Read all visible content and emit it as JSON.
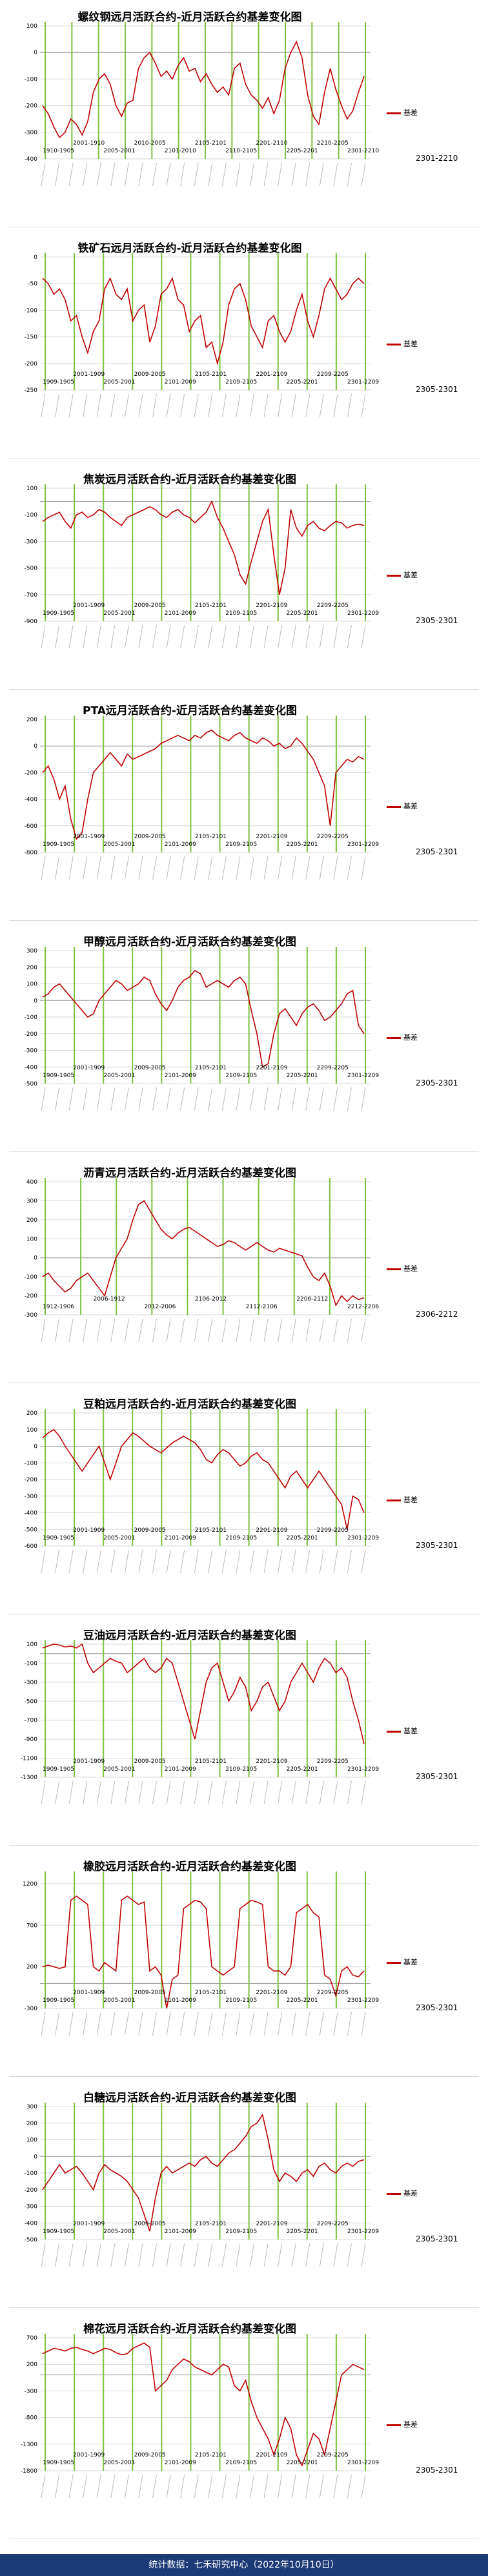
{
  "footer": "统计数据：七禾研究中心（2022年10月10日）",
  "legend_label": "基差",
  "chart_data": [
    {
      "type": "line",
      "title": "螺纹钢远月活跃合约-近月活跃合约基差变化图",
      "ytick_labels": [
        "100",
        "0",
        "-100",
        "-200",
        "-300",
        "-400"
      ],
      "ylim": [
        -400,
        100
      ],
      "vlines": 13,
      "period_labels": [
        "1910-1905",
        "2001-1910",
        "2005-2001",
        "2010-2005",
        "2101-2010",
        "2105-2101",
        "2110-2105",
        "2201-2110",
        "2205-2201",
        "2210-2205",
        "2301-2210"
      ],
      "series": [
        {
          "name": "基差",
          "values": [
            -200,
            -230,
            -280,
            -320,
            -300,
            -250,
            -270,
            -310,
            -260,
            -150,
            -100,
            -80,
            -120,
            -200,
            -240,
            -190,
            -180,
            -60,
            -20,
            0,
            -40,
            -90,
            -70,
            -100,
            -50,
            -20,
            -70,
            -60,
            -110,
            -80,
            -120,
            -150,
            -130,
            -160,
            -60,
            -40,
            -120,
            -160,
            -180,
            -210,
            -170,
            -230,
            -180,
            -60,
            0,
            40,
            -20,
            -160,
            -240,
            -270,
            -150,
            -60,
            -140,
            -200,
            -250,
            -220,
            -150,
            -90
          ]
        }
      ],
      "extra_label": "2301-2210"
    },
    {
      "type": "line",
      "title": "铁矿石远月活跃合约-近月活跃合约基差变化图",
      "ytick_labels": [
        "0",
        "-50",
        "-100",
        "-150",
        "-200",
        "-250"
      ],
      "ylim": [
        -250,
        0
      ],
      "vlines": 12,
      "period_labels": [
        "1909-1905",
        "2001-1909",
        "2005-2001",
        "2009-2005",
        "2101-2009",
        "2105-2101",
        "2109-2105",
        "2201-2109",
        "2205-2201",
        "2209-2205",
        "2301-2209"
      ],
      "series": [
        {
          "name": "基差",
          "values": [
            -40,
            -50,
            -70,
            -60,
            -80,
            -120,
            -110,
            -150,
            -180,
            -140,
            -120,
            -60,
            -40,
            -70,
            -80,
            -60,
            -120,
            -100,
            -90,
            -160,
            -130,
            -70,
            -60,
            -40,
            -80,
            -90,
            -140,
            -120,
            -110,
            -170,
            -160,
            -200,
            -160,
            -90,
            -60,
            -50,
            -80,
            -130,
            -150,
            -170,
            -120,
            -110,
            -140,
            -160,
            -140,
            -100,
            -70,
            -120,
            -150,
            -110,
            -60,
            -40,
            -60,
            -80,
            -70,
            -50,
            -40,
            -50
          ]
        }
      ],
      "extra_label": "2305-2301"
    },
    {
      "type": "line",
      "title": "焦炭远月活跃合约-近月活跃合约基差变化图",
      "ytick_labels": [
        "100",
        "-100",
        "-300",
        "-500",
        "-700",
        "-900"
      ],
      "ylim": [
        -900,
        100
      ],
      "vlines": 12,
      "period_labels": [
        "1909-1905",
        "2001-1909",
        "2005-2001",
        "2009-2005",
        "2101-2009",
        "2105-2101",
        "2109-2105",
        "2201-2109",
        "2205-2201",
        "2209-2205",
        "2301-2209"
      ],
      "series": [
        {
          "name": "基差",
          "values": [
            -150,
            -120,
            -100,
            -80,
            -150,
            -200,
            -100,
            -80,
            -120,
            -100,
            -60,
            -80,
            -120,
            -150,
            -180,
            -120,
            -100,
            -80,
            -60,
            -40,
            -60,
            -100,
            -120,
            -80,
            -60,
            -100,
            -120,
            -160,
            -120,
            -80,
            0,
            -120,
            -200,
            -300,
            -400,
            -550,
            -620,
            -450,
            -300,
            -150,
            -60,
            -400,
            -700,
            -500,
            -60,
            -200,
            -260,
            -180,
            -150,
            -200,
            -220,
            -180,
            -150,
            -160,
            -200,
            -180,
            -170,
            -180
          ]
        }
      ],
      "extra_label": "2305-2301"
    },
    {
      "type": "line",
      "title": "PTA远月活跃合约-近月活跃合约基差变化图",
      "ytick_labels": [
        "200",
        "0",
        "-200",
        "-400",
        "-600",
        "-800"
      ],
      "ylim": [
        -800,
        200
      ],
      "vlines": 12,
      "period_labels": [
        "1909-1905",
        "2001-1909",
        "2005-2001",
        "2009-2005",
        "2101-2009",
        "2105-2101",
        "2109-2105",
        "2201-2109",
        "2205-2201",
        "2209-2205",
        "2301-2209"
      ],
      "series": [
        {
          "name": "基差",
          "values": [
            -200,
            -150,
            -250,
            -400,
            -300,
            -550,
            -700,
            -650,
            -400,
            -200,
            -150,
            -100,
            -50,
            -100,
            -150,
            -60,
            -100,
            -80,
            -60,
            -40,
            -20,
            20,
            40,
            60,
            80,
            60,
            40,
            80,
            60,
            100,
            120,
            80,
            60,
            40,
            80,
            100,
            60,
            40,
            20,
            60,
            40,
            0,
            20,
            -20,
            0,
            60,
            20,
            -40,
            -100,
            -200,
            -300,
            -600,
            -200,
            -150,
            -100,
            -120,
            -80,
            -100
          ]
        }
      ],
      "extra_label": "2305-2301"
    },
    {
      "type": "line",
      "title": "甲醇远月活跃合约-近月活跃合约基差变化图",
      "ytick_labels": [
        "300",
        "200",
        "100",
        "0",
        "-100",
        "-200",
        "-300",
        "-400",
        "-500"
      ],
      "ylim": [
        -500,
        300
      ],
      "vlines": 12,
      "period_labels": [
        "1909-1905",
        "2001-1909",
        "2005-2001",
        "2009-2005",
        "2101-2009",
        "2105-2101",
        "2109-2105",
        "2201-2109",
        "2205-2201",
        "2209-2205",
        "2301-2209"
      ],
      "series": [
        {
          "name": "基差",
          "values": [
            20,
            40,
            80,
            100,
            60,
            20,
            -20,
            -60,
            -100,
            -80,
            0,
            40,
            80,
            120,
            100,
            60,
            80,
            100,
            140,
            120,
            40,
            -20,
            -60,
            0,
            80,
            120,
            140,
            180,
            160,
            80,
            100,
            120,
            100,
            80,
            120,
            140,
            100,
            -60,
            -200,
            -400,
            -380,
            -200,
            -80,
            -50,
            -100,
            -150,
            -80,
            -40,
            -20,
            -60,
            -120,
            -100,
            -60,
            -20,
            40,
            60,
            -150,
            -200
          ]
        }
      ],
      "extra_label": "2305-2301"
    },
    {
      "type": "line",
      "title": "沥青远月活跃合约-近月活跃合约基差变化图",
      "ytick_labels": [
        "400",
        "300",
        "200",
        "100",
        "0",
        "-100",
        "-200",
        "-300"
      ],
      "ylim": [
        -300,
        400
      ],
      "vlines": 10,
      "period_labels": [
        "1912-1906",
        "2006-1912",
        "2012-2006",
        "2106-2012",
        "2112-2106",
        "2206-2112",
        "2212-2206"
      ],
      "series": [
        {
          "name": "基差",
          "values": [
            -100,
            -80,
            -120,
            -150,
            -180,
            -160,
            -120,
            -100,
            -80,
            -120,
            -160,
            -200,
            -100,
            0,
            50,
            100,
            200,
            280,
            300,
            250,
            200,
            150,
            120,
            100,
            130,
            150,
            160,
            140,
            120,
            100,
            80,
            60,
            70,
            90,
            80,
            60,
            40,
            60,
            80,
            60,
            40,
            30,
            50,
            40,
            30,
            20,
            10,
            -50,
            -100,
            -120,
            -80,
            -150,
            -250,
            -200,
            -230,
            -200,
            -220,
            -210
          ]
        }
      ],
      "extra_label": "2306-2212"
    },
    {
      "type": "line",
      "title": "豆粕远月活跃合约-近月活跃合约基差变化图",
      "ytick_labels": [
        "200",
        "100",
        "0",
        "-100",
        "-200",
        "-300",
        "-400",
        "-500",
        "-600"
      ],
      "ylim": [
        -600,
        200
      ],
      "vlines": 12,
      "period_labels": [
        "1909-1905",
        "2001-1909",
        "2005-2001",
        "2009-2005",
        "2101-2009",
        "2105-2101",
        "2109-2105",
        "2201-2109",
        "2205-2201",
        "2209-2205",
        "2301-2209"
      ],
      "series": [
        {
          "name": "基差",
          "values": [
            50,
            80,
            100,
            60,
            0,
            -50,
            -100,
            -150,
            -100,
            -50,
            0,
            -100,
            -200,
            -100,
            0,
            40,
            80,
            60,
            30,
            0,
            -20,
            -40,
            -10,
            20,
            40,
            60,
            40,
            20,
            -20,
            -80,
            -100,
            -50,
            -20,
            -40,
            -80,
            -120,
            -100,
            -60,
            -40,
            -80,
            -100,
            -150,
            -200,
            -250,
            -180,
            -150,
            -200,
            -250,
            -200,
            -150,
            -200,
            -250,
            -300,
            -350,
            -500,
            -300,
            -320,
            -400
          ]
        }
      ],
      "extra_label": "2305-2301"
    },
    {
      "type": "line",
      "title": "豆油远月活跃合约-近月活跃合约基差变化图",
      "ytick_labels": [
        "100",
        "-100",
        "-300",
        "-500",
        "-700",
        "-900",
        "-1100",
        "-1300"
      ],
      "ylim": [
        -1300,
        100
      ],
      "vlines": 12,
      "period_labels": [
        "1909-1905",
        "2001-1909",
        "2005-2001",
        "2009-2005",
        "2101-2009",
        "2105-2101",
        "2109-2105",
        "2201-2109",
        "2205-2201",
        "2209-2205",
        "2301-2209"
      ],
      "series": [
        {
          "name": "基差",
          "values": [
            60,
            80,
            100,
            90,
            70,
            80,
            60,
            100,
            -100,
            -200,
            -150,
            -100,
            -50,
            -80,
            -100,
            -200,
            -150,
            -100,
            -50,
            -150,
            -200,
            -150,
            -50,
            -100,
            -300,
            -500,
            -700,
            -900,
            -600,
            -300,
            -150,
            -100,
            -300,
            -500,
            -400,
            -250,
            -350,
            -600,
            -500,
            -350,
            -300,
            -450,
            -600,
            -500,
            -300,
            -200,
            -100,
            -200,
            -300,
            -150,
            -50,
            -100,
            -200,
            -150,
            -250,
            -500,
            -700,
            -950
          ]
        }
      ],
      "extra_label": "2305-2301"
    },
    {
      "type": "line",
      "title": "橡胶远月活跃合约-近月活跃合约基差变化图",
      "ytick_labels": [
        "1200",
        "700",
        "200",
        "-300"
      ],
      "ylim": [
        -300,
        1300
      ],
      "vlines": 12,
      "period_labels": [
        "1909-1905",
        "2001-1909",
        "2005-2001",
        "2009-2005",
        "2101-2009",
        "2105-2101",
        "2109-2105",
        "2201-2109",
        "2205-2201",
        "2209-2205",
        "2301-2209"
      ],
      "series": [
        {
          "name": "基差",
          "values": [
            200,
            220,
            200,
            180,
            200,
            1000,
            1050,
            1000,
            950,
            200,
            150,
            250,
            200,
            150,
            1000,
            1050,
            1000,
            950,
            980,
            150,
            200,
            100,
            -300,
            50,
            100,
            900,
            950,
            1000,
            980,
            900,
            200,
            150,
            100,
            150,
            200,
            900,
            950,
            1000,
            980,
            950,
            200,
            150,
            150,
            100,
            200,
            850,
            900,
            950,
            850,
            800,
            100,
            50,
            -150,
            150,
            200,
            100,
            80,
            150
          ]
        }
      ],
      "extra_label": "2305-2301"
    },
    {
      "type": "line",
      "title": "白糖远月活跃合约-近月活跃合约基差变化图",
      "ytick_labels": [
        "300",
        "200",
        "100",
        "0",
        "-100",
        "-200",
        "-300",
        "-400",
        "-500"
      ],
      "ylim": [
        -500,
        300
      ],
      "vlines": 12,
      "period_labels": [
        "1909-1905",
        "2001-1909",
        "2005-2001",
        "2009-2005",
        "2101-2009",
        "2105-2101",
        "2109-2105",
        "2201-2109",
        "2205-2201",
        "2209-2205",
        "2301-2209"
      ],
      "series": [
        {
          "name": "基差",
          "values": [
            -200,
            -150,
            -100,
            -50,
            -100,
            -80,
            -60,
            -100,
            -150,
            -200,
            -100,
            -50,
            -80,
            -100,
            -120,
            -150,
            -200,
            -250,
            -350,
            -450,
            -250,
            -100,
            -60,
            -100,
            -80,
            -60,
            -40,
            -60,
            -20,
            0,
            -40,
            -60,
            -20,
            20,
            40,
            80,
            120,
            180,
            200,
            250,
            100,
            -80,
            -150,
            -100,
            -120,
            -150,
            -100,
            -80,
            -120,
            -60,
            -40,
            -80,
            -100,
            -60,
            -40,
            -60,
            -30,
            -20
          ]
        }
      ],
      "extra_label": "2305-2301"
    },
    {
      "type": "line",
      "title": "棉花远月活跃合约-近月活跃合约基差变化图",
      "ytick_labels": [
        "700",
        "200",
        "-300",
        "-800",
        "-1300",
        "-1800"
      ],
      "ylim": [
        -1800,
        700
      ],
      "vlines": 12,
      "period_labels": [
        "1909-1905",
        "2001-1909",
        "2005-2001",
        "2009-2005",
        "2101-2009",
        "2105-2101",
        "2109-2105",
        "2201-2109",
        "2205-2201",
        "2209-2205",
        "2301-2209"
      ],
      "series": [
        {
          "name": "基差",
          "values": [
            400,
            450,
            500,
            480,
            450,
            500,
            520,
            480,
            450,
            400,
            450,
            500,
            480,
            420,
            380,
            400,
            500,
            550,
            600,
            520,
            -300,
            -200,
            -100,
            100,
            200,
            300,
            250,
            150,
            100,
            50,
            0,
            100,
            200,
            150,
            -200,
            -300,
            -100,
            -500,
            -800,
            -1000,
            -1200,
            -1500,
            -1200,
            -800,
            -1000,
            -1500,
            -1700,
            -1400,
            -1100,
            -1200,
            -1500,
            -1000,
            -500,
            0,
            100,
            200,
            150,
            100
          ]
        }
      ],
      "extra_label": "2305-2301"
    }
  ]
}
